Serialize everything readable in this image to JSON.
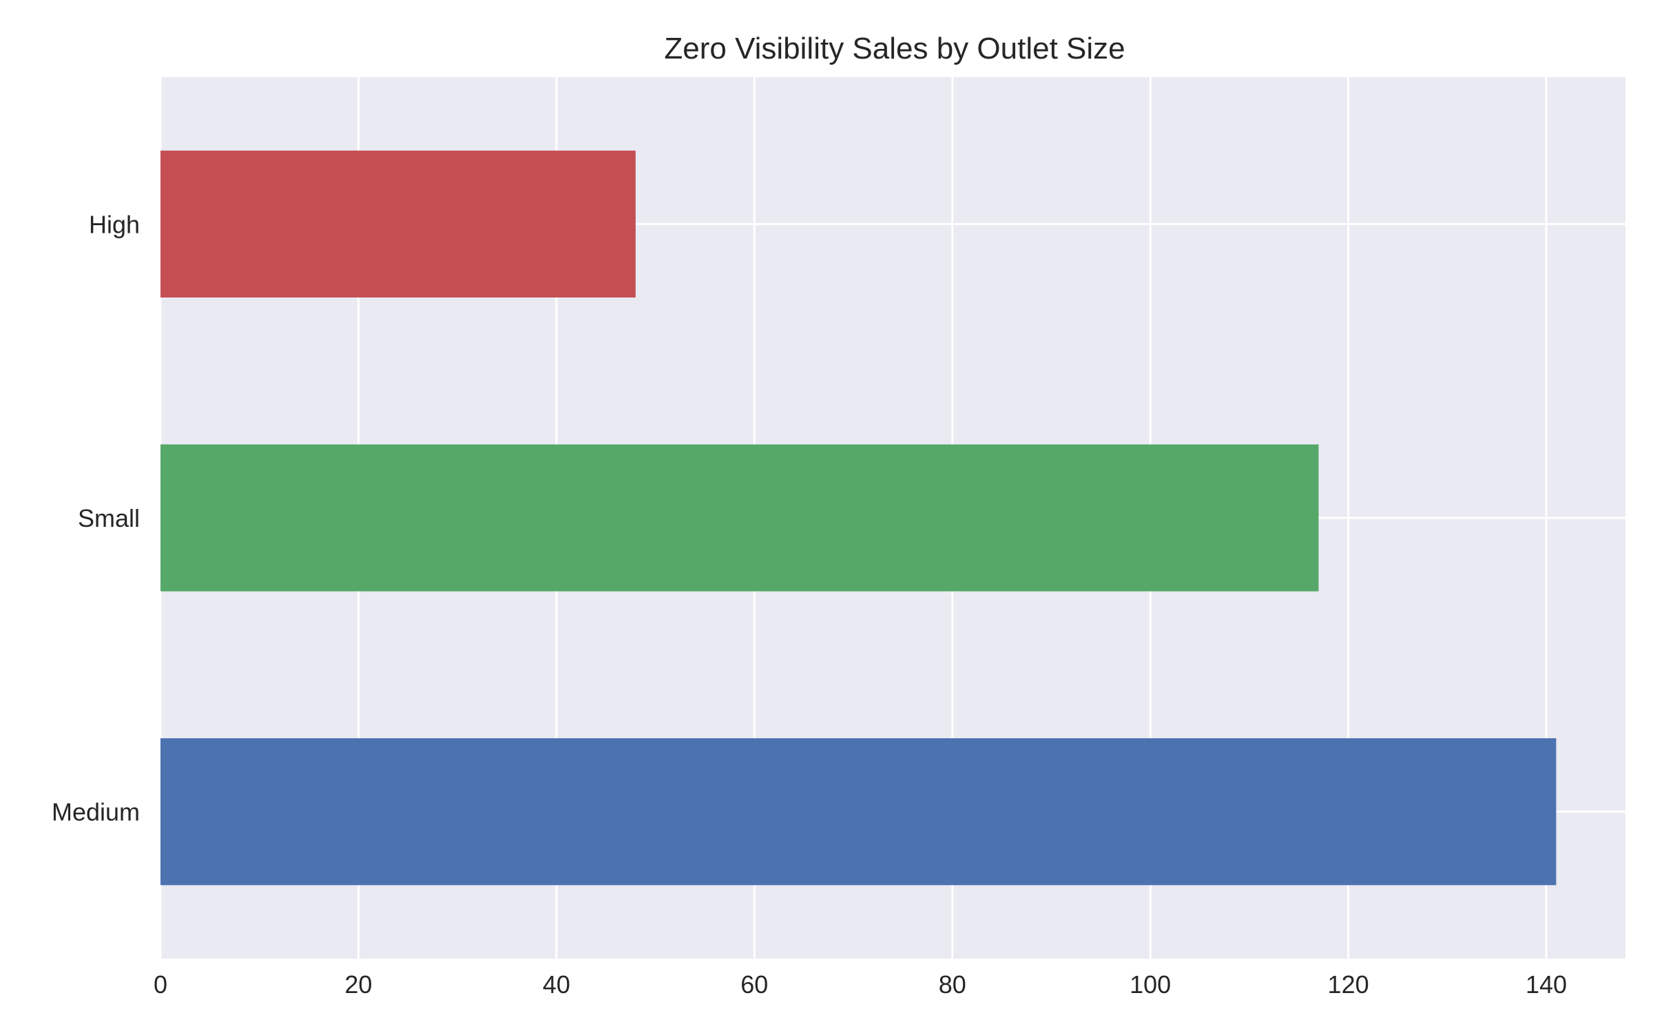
{
  "chart_data": {
    "type": "bar",
    "orientation": "horizontal",
    "title": "Zero Visibility Sales by Outlet Size",
    "xlabel": "",
    "ylabel": "",
    "categories": [
      "Medium",
      "Small",
      "High"
    ],
    "values": [
      141,
      117,
      48
    ],
    "colors": [
      "#4c72b0",
      "#55a868",
      "#c44e52"
    ],
    "xlim": [
      0,
      148
    ],
    "xticks": [
      0,
      20,
      40,
      60,
      80,
      100,
      120,
      140
    ],
    "grid": true,
    "background_color": "#eaeaf2",
    "grid_color": "#ffffff"
  }
}
